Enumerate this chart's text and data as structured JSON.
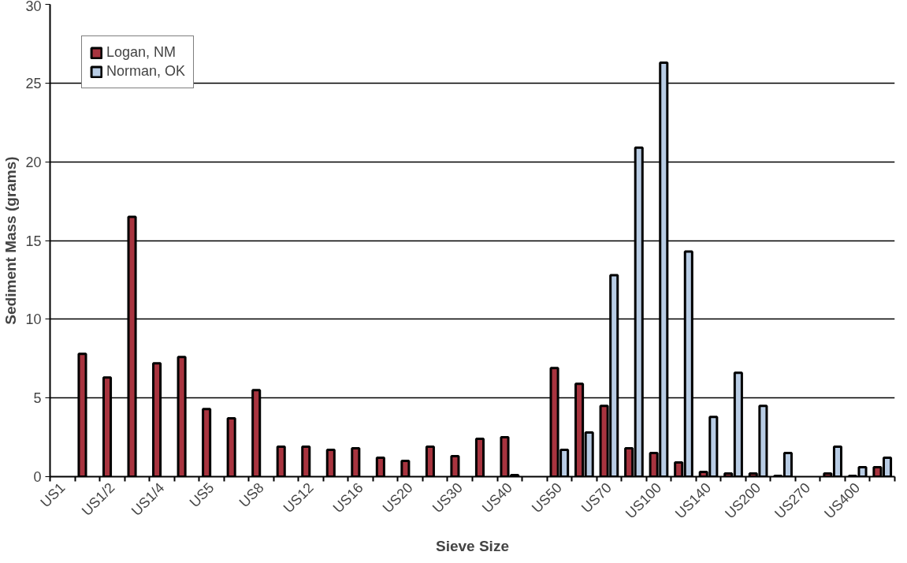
{
  "chart_data": {
    "type": "bar",
    "xlabel": "Sieve Size",
    "ylabel": "Sediment Mass (grams)",
    "categories": [
      "US1",
      null,
      "US1/2",
      null,
      "US1/4",
      null,
      "US5",
      null,
      "US8",
      null,
      "US12",
      null,
      "US16",
      null,
      "US20",
      null,
      "US30",
      null,
      "US40",
      null,
      "US50",
      null,
      "US70",
      null,
      "US100",
      null,
      "US140",
      null,
      "US200",
      null,
      "US270",
      null,
      "US400",
      null
    ],
    "series": [
      {
        "name": "Logan, NM",
        "color": "#a8343f",
        "values": [
          null,
          7.8,
          6.3,
          16.5,
          7.2,
          7.6,
          4.3,
          3.7,
          5.5,
          1.9,
          1.9,
          1.7,
          1.8,
          1.2,
          1.0,
          1.9,
          1.3,
          2.4,
          2.5,
          null,
          6.9,
          5.9,
          4.5,
          1.8,
          1.5,
          0.9,
          0.3,
          0.2,
          0.2,
          0.05,
          null,
          0.2,
          0.05,
          0.6
        ]
      },
      {
        "name": "Norman, OK",
        "color": "#b8cce4",
        "values": [
          null,
          null,
          null,
          null,
          null,
          null,
          null,
          null,
          null,
          null,
          null,
          null,
          null,
          null,
          null,
          null,
          null,
          null,
          0.1,
          null,
          1.7,
          2.8,
          12.8,
          20.9,
          26.3,
          14.3,
          3.8,
          6.6,
          4.5,
          1.5,
          null,
          1.9,
          0.6,
          1.2
        ]
      }
    ],
    "ylim": [
      0,
      30
    ],
    "yticks": [
      0,
      5,
      10,
      15,
      20,
      25,
      30
    ],
    "grid": "y",
    "legend": "top left"
  }
}
